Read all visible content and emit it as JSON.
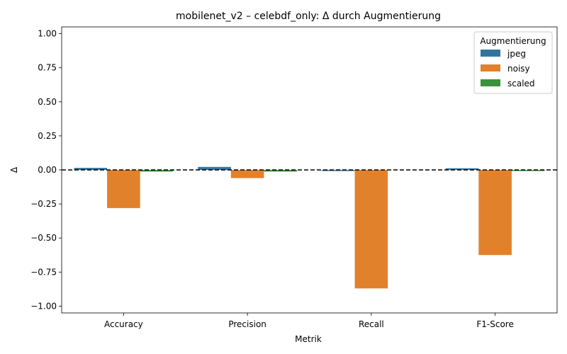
{
  "chart_data": {
    "type": "bar",
    "title": "mobilenet_v2 – celebdf_only: Δ durch Augmentierung",
    "xlabel": "Metrik",
    "ylabel": "Δ",
    "categories": [
      "Accuracy",
      "Precision",
      "Recall",
      "F1-Score"
    ],
    "series": [
      {
        "name": "jpeg",
        "color": "#3274a1",
        "values": [
          0.015,
          0.022,
          -0.008,
          0.012
        ]
      },
      {
        "name": "noisy",
        "color": "#e1812c",
        "values": [
          -0.28,
          -0.06,
          -0.87,
          -0.625
        ]
      },
      {
        "name": "scaled",
        "color": "#3a923a",
        "values": [
          -0.012,
          -0.012,
          0.0,
          -0.008
        ]
      }
    ],
    "ylim": [
      -1.05,
      1.05
    ],
    "yticks": [
      -1.0,
      -0.75,
      -0.5,
      -0.25,
      0.0,
      0.25,
      0.5,
      0.75,
      1.0
    ],
    "ytick_labels": [
      "−1.00",
      "−0.75",
      "−0.50",
      "−0.25",
      "0.00",
      "0.25",
      "0.50",
      "0.75",
      "1.00"
    ],
    "reference_line": {
      "y": 0,
      "style": "dashed",
      "color": "#000000"
    },
    "legend": {
      "title": "Augmentierung",
      "placement": "top-right"
    },
    "grid": false
  }
}
